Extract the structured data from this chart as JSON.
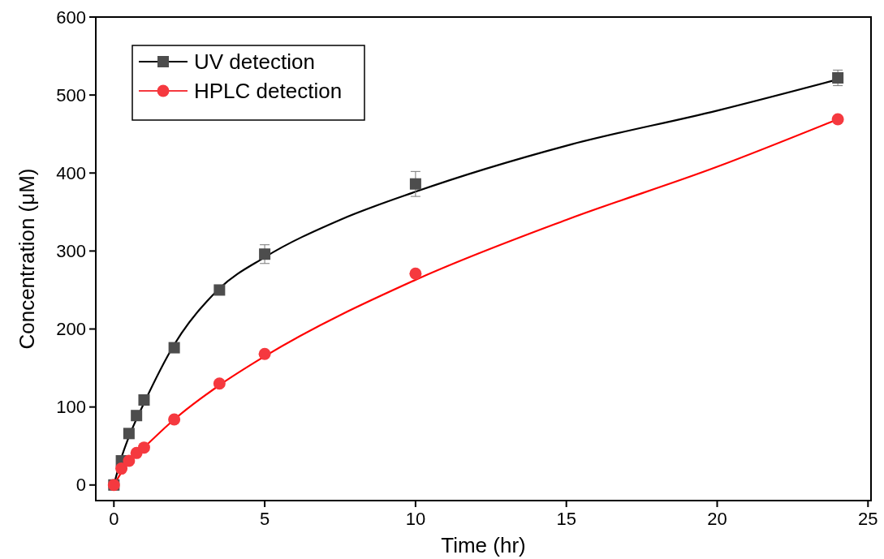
{
  "chart_data": {
    "type": "scatter",
    "xlabel": "Time (hr)",
    "ylabel": "Concentration (μM)",
    "xlim": [
      -0.6,
      25.1
    ],
    "ylim": [
      -20,
      600
    ],
    "xticks": [
      0,
      5,
      10,
      15,
      20,
      25
    ],
    "yticks": [
      0,
      100,
      200,
      300,
      400,
      500,
      600
    ],
    "grid": false,
    "legend": "top left",
    "series": [
      {
        "name": "UV detection",
        "color": "#4d4d4d",
        "marker": "square",
        "x": [
          0,
          0.25,
          0.5,
          0.75,
          1,
          2,
          3.5,
          5,
          10,
          24
        ],
        "values": [
          0,
          31,
          66,
          89,
          109,
          176,
          250,
          296,
          386,
          522
        ],
        "errors": [
          null,
          null,
          null,
          null,
          null,
          null,
          null,
          12,
          16,
          10
        ]
      },
      {
        "name": "HPLC detection",
        "color": "#f5393f",
        "marker": "circle",
        "x": [
          0,
          0.25,
          0.5,
          0.75,
          1,
          2,
          3.5,
          5,
          10,
          24
        ],
        "values": [
          0,
          21,
          31,
          41,
          48,
          84,
          130,
          168,
          271,
          469
        ]
      },
      {
        "type": "line",
        "color": "#000000",
        "marker": "none",
        "x": [
          0,
          0.25,
          0.5,
          1,
          2,
          3.5,
          5,
          7.5,
          10,
          15,
          20,
          24
        ],
        "values": [
          0,
          35,
          62,
          105,
          180,
          252,
          292,
          340,
          376,
          435,
          480,
          520
        ]
      },
      {
        "type": "line",
        "color": "#ff0000",
        "marker": "none",
        "x": [
          0,
          0.25,
          0.5,
          1,
          2,
          3.5,
          5,
          10,
          15,
          20,
          24
        ],
        "values": [
          0,
          16,
          29,
          48,
          84,
          128,
          165,
          263,
          340,
          408,
          469
        ]
      }
    ]
  }
}
